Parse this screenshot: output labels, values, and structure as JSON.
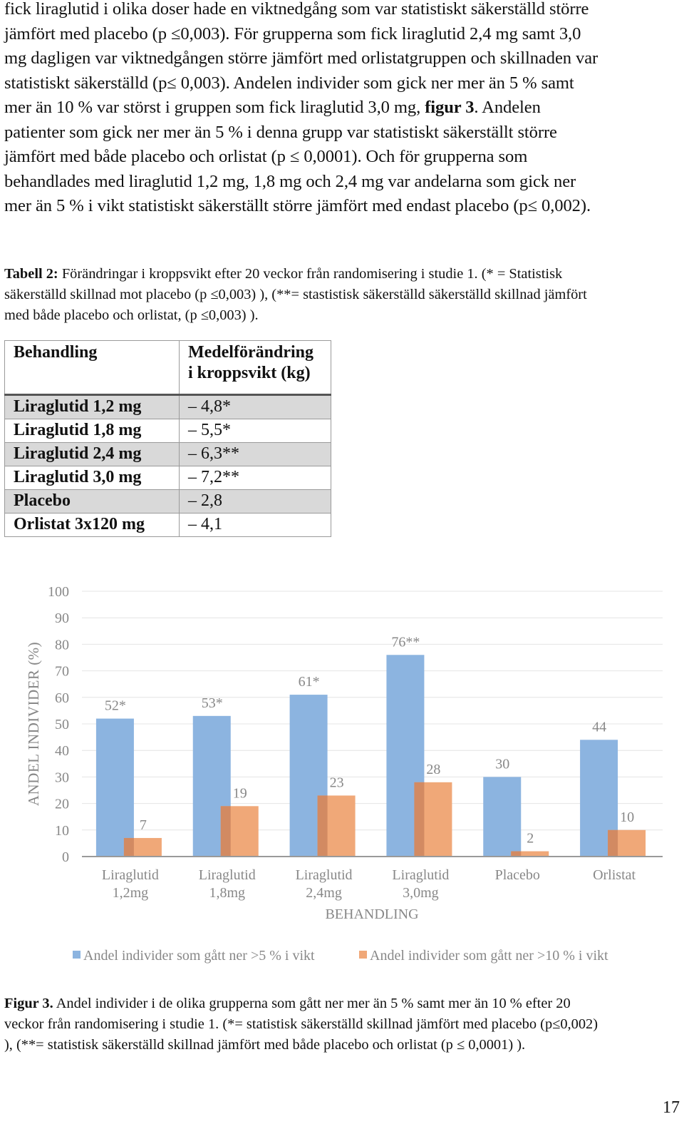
{
  "paragraph": {
    "lines": [
      "fick liraglutid i olika doser hade en viktnedgång som var statistiskt säkerställd större",
      "jämfört med placebo (p ≤0,003). För grupperna som fick liraglutid 2,4 mg samt 3,0",
      "mg dagligen var viktnedgången större jämfört med orlistatgruppen och skillnaden var",
      "statistiskt säkerställd (p≤ 0,003). Andelen individer som gick ner mer än 5 % samt"
    ],
    "line5_pre": "mer än 10 % var störst i gruppen som fick liraglutid 3,0 mg, ",
    "line5_bold": "figur 3",
    "line5_post": ". Andelen",
    "lines_after": [
      "patienter som gick ner mer än 5 % i denna grupp var statistiskt säkerställt större",
      "jämfört med både placebo och orlistat (p ≤ 0,0001).  Och för grupperna som",
      "behandlades med liraglutid 1,2 mg, 1,8 mg och 2,4 mg var andelarna som gick ner",
      "mer än 5 % i vikt statistiskt säkerställt större jämfört med endast placebo (p≤ 0,002)."
    ]
  },
  "table_caption": {
    "label": "Tabell 2:",
    "line1": " Förändringar i kroppsvikt efter 20 veckor från randomisering i studie 1. (* = Statistisk",
    "line2": "säkerställd skillnad mot placebo (p ≤0,003) ), (**= stastistisk säkerställd säkerställd skillnad jämfört",
    "line3": "med både placebo och orlistat, (p ≤0,003) )."
  },
  "table": {
    "header_col1": "Behandling",
    "header_col2_line1": "Medelförändring",
    "header_col2_line2": "i kroppsvikt (kg)",
    "rows": [
      {
        "treatment": "Liraglutid 1,2 mg",
        "change": "– 4,8*"
      },
      {
        "treatment": "Liraglutid 1,8 mg",
        "change": "– 5,5*"
      },
      {
        "treatment": "Liraglutid 2,4 mg",
        "change": "– 6,3**"
      },
      {
        "treatment": "Liraglutid 3,0 mg",
        "change": "– 7,2**"
      },
      {
        "treatment": "Placebo",
        "change": "– 2,8"
      },
      {
        "treatment": "Orlistat 3x120 mg",
        "change": "– 4,1"
      }
    ]
  },
  "chart_data": {
    "type": "bar",
    "categories": [
      [
        "Liraglutid",
        "1,2mg"
      ],
      [
        "Liraglutid",
        "1,8mg"
      ],
      [
        "Liraglutid",
        "2,4mg"
      ],
      [
        "Liraglutid",
        "3,0mg"
      ],
      [
        "Placebo"
      ],
      [
        "Orlistat"
      ]
    ],
    "series": [
      {
        "name": "Andel individer som gått ner >5 % i vikt",
        "color": "#8cb4e0",
        "values": [
          52,
          53,
          61,
          76,
          30,
          44
        ],
        "labels": [
          "52*",
          "53*",
          "61*",
          "76**",
          "30",
          "44"
        ]
      },
      {
        "name": "Andel individer som gått ner >10 % i vikt",
        "color": "#f0a878",
        "values": [
          7,
          19,
          23,
          28,
          2,
          10
        ],
        "labels": [
          "7",
          "19",
          "23",
          "28",
          "2",
          "10"
        ]
      }
    ],
    "yticks": [
      "0",
      "10",
      "20",
      "30",
      "40",
      "50",
      "60",
      "70",
      "80",
      "90",
      "100"
    ],
    "ylim": [
      0,
      100
    ],
    "xlabel": "BEHANDLING",
    "ylabel": "ANDEL INDIVIDER (%)",
    "axis_color": "#9a9a9a",
    "text_color": "#888888"
  },
  "figure_caption": {
    "label": "Figur 3.",
    "line1": " Andel individer i de olika grupperna som gått ner mer än 5 % samt mer än 10 % efter 20",
    "line2": "veckor från randomisering i studie 1. (*= statistisk säkerställd skillnad jämfört med placebo (p≤0,002)",
    "line3": "), (**= statistisk säkerställd skillnad jämfört med både placebo och orlistat (p ≤ 0,0001) )."
  },
  "page_number": "17"
}
